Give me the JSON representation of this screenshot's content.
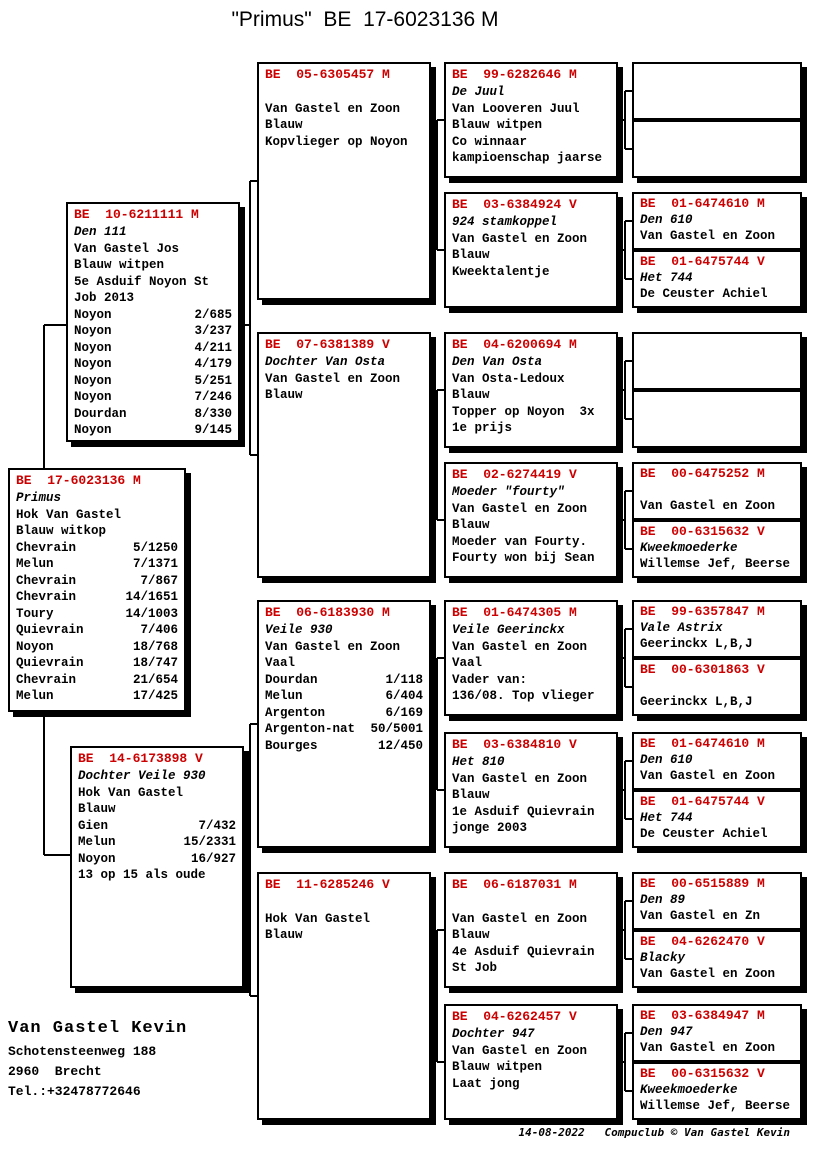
{
  "title": "\"Primus\"  BE  17-6023136 M",
  "colors": {
    "ring_red": "#cc0000",
    "line_black": "#000000",
    "background": "#ffffff"
  },
  "owner_block": {
    "name": "Van Gastel Kevin",
    "address_line1": "Schotensteenweg 188",
    "address_line2": "2960  Brecht",
    "phone": "Tel.:+32478772646"
  },
  "footer": {
    "text": "14-08-2022   Compuclub © Van Gastel Kevin"
  },
  "boxes": {
    "subject": {
      "ring": "BE  17-6023136 M",
      "lines": [
        {
          "text": "Primus",
          "italic": true
        },
        {
          "text": "Hok Van Gastel"
        },
        {
          "text": "Blauw witkop"
        },
        {
          "race": "Chevrain",
          "result": "5/1250"
        },
        {
          "race": "Melun",
          "result": "7/1371"
        },
        {
          "race": "Chevrain",
          "result": "7/867"
        },
        {
          "race": "Chevrain",
          "result": "14/1651"
        },
        {
          "race": "Toury",
          "result": "14/1003"
        },
        {
          "race": "Quievrain",
          "result": "7/406"
        },
        {
          "race": "Noyon",
          "result": "18/768"
        },
        {
          "race": "Quievrain",
          "result": "18/747"
        },
        {
          "race": "Chevrain",
          "result": "21/654"
        },
        {
          "race": "Melun",
          "result": "17/425"
        }
      ]
    },
    "father": {
      "ring": "BE  10-6211111 M",
      "lines": [
        {
          "text": "Den 111",
          "italic": true
        },
        {
          "text": "Van Gastel Jos"
        },
        {
          "text": "Blauw witpen"
        },
        {
          "text": "5e Asduif Noyon St"
        },
        {
          "text": "Job 2013"
        },
        {
          "race": "Noyon",
          "result": "2/685"
        },
        {
          "race": "Noyon",
          "result": "3/237"
        },
        {
          "race": "Noyon",
          "result": "4/211"
        },
        {
          "race": "Noyon",
          "result": "4/179"
        },
        {
          "race": "Noyon",
          "result": "5/251"
        },
        {
          "race": "Noyon",
          "result": "7/246"
        },
        {
          "race": "Dourdan",
          "result": "8/330"
        },
        {
          "race": "Noyon",
          "result": "9/145"
        }
      ]
    },
    "mother": {
      "ring": "BE  14-6173898 V",
      "lines": [
        {
          "text": "Dochter Veile 930",
          "italic": true
        },
        {
          "text": "Hok Van Gastel"
        },
        {
          "text": "Blauw"
        },
        {
          "race": "Gien",
          "result": "7/432"
        },
        {
          "race": "Melun",
          "result": "15/2331"
        },
        {
          "race": "Noyon",
          "result": "16/927"
        },
        {
          "text": "13 op 15 als oude"
        }
      ]
    },
    "gp1": {
      "ring": "BE  05-6305457 M",
      "lines": [
        {
          "text": ""
        },
        {
          "text": "Van Gastel en Zoon"
        },
        {
          "text": "Blauw"
        },
        {
          "text": "Kopvlieger op Noyon"
        }
      ]
    },
    "gp2": {
      "ring": "BE  07-6381389 V",
      "lines": [
        {
          "text": "Dochter Van Osta",
          "italic": true
        },
        {
          "text": "Van Gastel en Zoon"
        },
        {
          "text": "Blauw"
        }
      ]
    },
    "gp3": {
      "ring": "BE  06-6183930 M",
      "lines": [
        {
          "text": "Veile 930",
          "italic": true
        },
        {
          "text": "Van Gastel en Zoon"
        },
        {
          "text": "Vaal"
        },
        {
          "race": "Dourdan",
          "result": "1/118"
        },
        {
          "race": "Melun",
          "result": "6/404"
        },
        {
          "race": "Argenton",
          "result": "6/169"
        },
        {
          "race": "Argenton-nat",
          "result": "50/5001"
        },
        {
          "race": "Bourges",
          "result": "12/450"
        }
      ]
    },
    "gp4": {
      "ring": "BE  11-6285246 V",
      "lines": [
        {
          "text": ""
        },
        {
          "text": "Hok Van Gastel"
        },
        {
          "text": "Blauw"
        }
      ]
    },
    "ggp1": {
      "ring": "BE  99-6282646 M",
      "lines": [
        {
          "text": "De Juul",
          "italic": true
        },
        {
          "text": "Van Looveren Juul"
        },
        {
          "text": "Blauw witpen"
        },
        {
          "text": "Co winnaar"
        },
        {
          "text": "kampioenschap jaarse"
        }
      ]
    },
    "ggp2": {
      "ring": "BE  03-6384924 V",
      "lines": [
        {
          "text": "924 stamkoppel",
          "italic": true
        },
        {
          "text": "Van Gastel en Zoon"
        },
        {
          "text": "Blauw"
        },
        {
          "text": "Kweektalentje"
        }
      ]
    },
    "ggp3": {
      "ring": "BE  04-6200694 M",
      "lines": [
        {
          "text": "Den Van Osta",
          "italic": true
        },
        {
          "text": "Van Osta-Ledoux"
        },
        {
          "text": "Blauw"
        },
        {
          "text": "Topper op Noyon  3x"
        },
        {
          "text": "1e prijs"
        }
      ]
    },
    "ggp4": {
      "ring": "BE  02-6274419 V",
      "lines": [
        {
          "text": "Moeder \"fourty\"",
          "italic": true
        },
        {
          "text": "Van Gastel en Zoon"
        },
        {
          "text": "Blauw"
        },
        {
          "text": "Moeder van Fourty."
        },
        {
          "text": "Fourty won bij Sean"
        }
      ]
    },
    "ggp5": {
      "ring": "BE  01-6474305 M",
      "lines": [
        {
          "text": "Veile Geerinckx",
          "italic": true
        },
        {
          "text": "Van Gastel en Zoon"
        },
        {
          "text": "Vaal"
        },
        {
          "text": "Vader van:"
        },
        {
          "text": "136/08. Top vlieger"
        }
      ]
    },
    "ggp6": {
      "ring": "BE  03-6384810 V",
      "lines": [
        {
          "text": "Het 810",
          "italic": true
        },
        {
          "text": "Van Gastel en Zoon"
        },
        {
          "text": "Blauw"
        },
        {
          "text": "1e Asduif Quievrain"
        },
        {
          "text": "jonge 2003"
        }
      ]
    },
    "ggp7": {
      "ring": "BE  06-6187031 M",
      "lines": [
        {
          "text": ""
        },
        {
          "text": "Van Gastel en Zoon"
        },
        {
          "text": "Blauw"
        },
        {
          "text": "4e Asduif Quievrain"
        },
        {
          "text": "St Job"
        }
      ]
    },
    "ggp8": {
      "ring": "BE  04-6262457 V",
      "lines": [
        {
          "text": "Dochter 947",
          "italic": true
        },
        {
          "text": "Van Gastel en Zoon"
        },
        {
          "text": "Blauw witpen"
        },
        {
          "text": "Laat jong"
        }
      ]
    },
    "gggp2a": {
      "ring": "BE  01-6474610 M",
      "lines": [
        {
          "text": "Den 610",
          "italic": true
        },
        {
          "text": "Van Gastel en Zoon"
        }
      ]
    },
    "gggp2b": {
      "ring": "BE  01-6475744 V",
      "lines": [
        {
          "text": "Het 744",
          "italic": true
        },
        {
          "text": "De Ceuster Achiel"
        }
      ]
    },
    "gggp4a": {
      "ring": "BE  00-6475252 M",
      "lines": [
        {
          "text": ""
        },
        {
          "text": "Van Gastel en Zoon"
        }
      ]
    },
    "gggp4b": {
      "ring": "BE  00-6315632 V",
      "lines": [
        {
          "text": "Kweekmoederke",
          "italic": true
        },
        {
          "text": "Willemse Jef, Beerse"
        }
      ]
    },
    "gggp5a": {
      "ring": "BE  99-6357847 M",
      "lines": [
        {
          "text": "Vale Astrix",
          "italic": true
        },
        {
          "text": "Geerinckx L,B,J"
        }
      ]
    },
    "gggp5b": {
      "ring": "BE  00-6301863 V",
      "lines": [
        {
          "text": ""
        },
        {
          "text": "Geerinckx L,B,J"
        }
      ]
    },
    "gggp6a": {
      "ring": "BE  01-6474610 M",
      "lines": [
        {
          "text": "Den 610",
          "italic": true
        },
        {
          "text": "Van Gastel en Zoon"
        }
      ]
    },
    "gggp6b": {
      "ring": "BE  01-6475744 V",
      "lines": [
        {
          "text": "Het 744",
          "italic": true
        },
        {
          "text": "De Ceuster Achiel"
        }
      ]
    },
    "gggp7a": {
      "ring": "BE  00-6515889 M",
      "lines": [
        {
          "text": "Den 89",
          "italic": true
        },
        {
          "text": "Van Gastel en Zn"
        }
      ]
    },
    "gggp7b": {
      "ring": "BE  04-6262470 V",
      "lines": [
        {
          "text": "Blacky",
          "italic": true
        },
        {
          "text": "Van Gastel en Zoon"
        }
      ]
    },
    "gggp8a": {
      "ring": "BE  03-6384947 M",
      "lines": [
        {
          "text": "Den 947",
          "italic": true
        },
        {
          "text": "Van Gastel en Zoon"
        }
      ]
    },
    "gggp8b": {
      "ring": "BE  00-6315632 V",
      "lines": [
        {
          "text": "Kweekmoederke",
          "italic": true
        },
        {
          "text": "Willemse Jef, Beerse"
        }
      ]
    }
  }
}
